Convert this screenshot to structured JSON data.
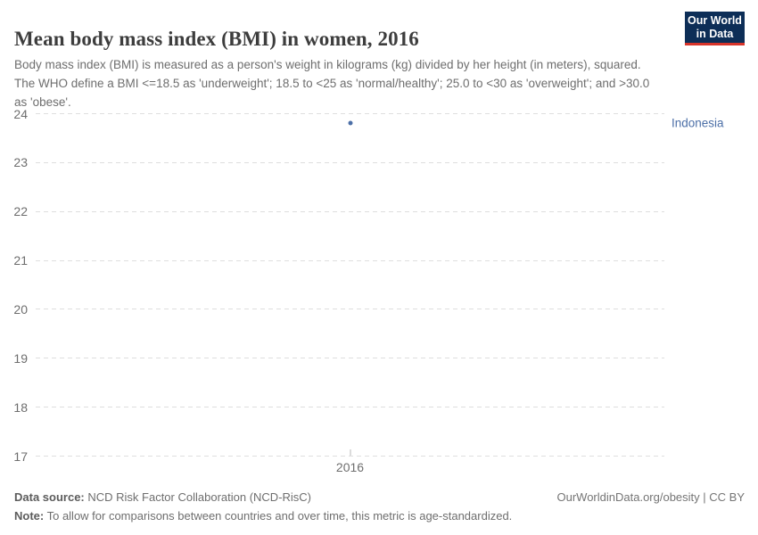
{
  "header": {
    "title": "Mean body mass index (BMI) in women, 2016",
    "subtitle": "Body mass index (BMI) is measured as a person's weight in kilograms (kg) divided by her height (in meters), squared. The WHO define a BMI <=18.5 as 'underweight'; 18.5 to <25 as 'normal/healthy'; 25.0 to <30 as 'overweight'; and >30.0 as 'obese'.",
    "logo": {
      "line1": "Our World",
      "line2": "in Data",
      "bg_color": "#0d2e57",
      "bar_color": "#d7342a"
    }
  },
  "chart_data": {
    "type": "scatter",
    "title": "Mean body mass index (BMI) in women, 2016",
    "xlabel": "",
    "ylabel": "",
    "x": [
      2016
    ],
    "xticks": [
      "2016"
    ],
    "series": [
      {
        "name": "Indonesia",
        "values": [
          23.8
        ],
        "color": "#4c6fa7"
      }
    ],
    "ylim": [
      17,
      24
    ],
    "yticks": [
      17,
      18,
      19,
      20,
      21,
      22,
      23,
      24
    ],
    "grid": "horizontal-dashed",
    "legend_position": "right-of-point-label",
    "grid_color": "#dedede",
    "axis_text_color": "#6e6e6e"
  },
  "footer": {
    "data_source_label": "Data source:",
    "data_source_text": " NCD Risk Factor Collaboration (NCD-RisC)",
    "note_label": "Note:",
    "note_text": " To allow for comparisons between countries and over time, this metric is age-standardized.",
    "attribution": "OurWorldinData.org/obesity | CC BY"
  }
}
